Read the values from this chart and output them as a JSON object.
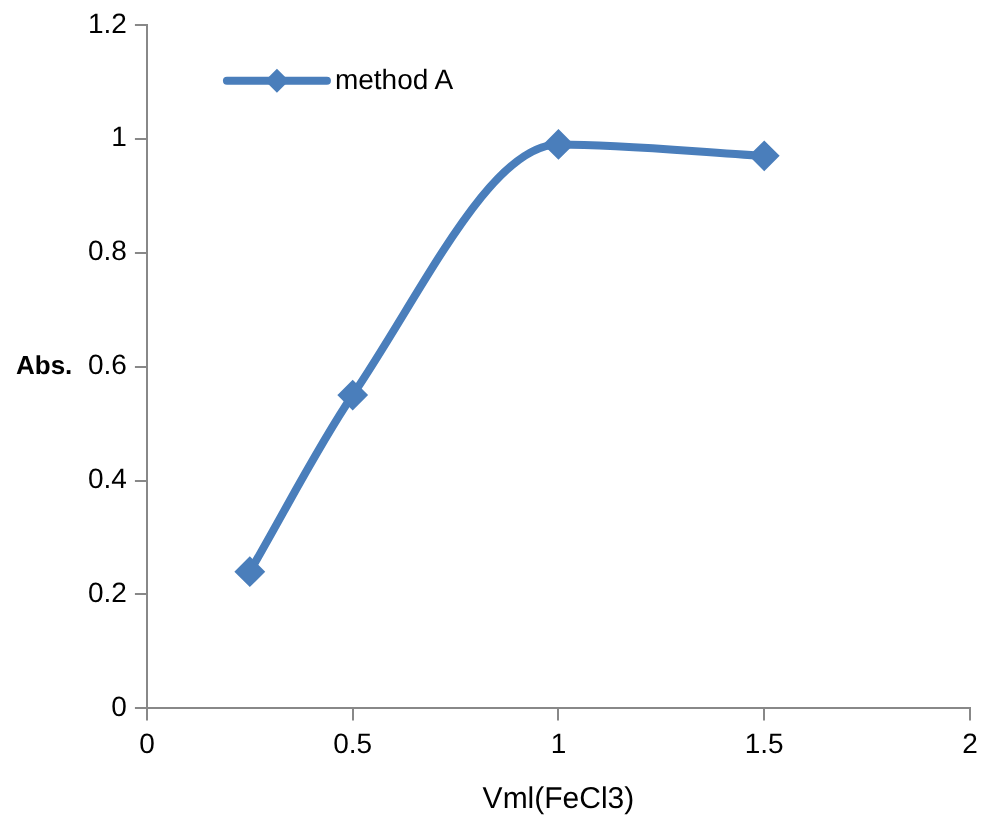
{
  "chart_data": {
    "type": "line",
    "xlabel": "Vml(FeCl3)",
    "ylabel": "Abs.",
    "x": [
      0.25,
      0.5,
      1,
      1.5
    ],
    "series": [
      {
        "name": "method A",
        "color": "#4a7ebb",
        "values": [
          0.24,
          0.55,
          0.99,
          0.97
        ]
      }
    ],
    "xlim": [
      0,
      2
    ],
    "xticks": [
      0,
      0.5,
      1,
      1.5,
      2
    ],
    "ylim": [
      0,
      1.2
    ],
    "yticks": [
      0,
      0.2,
      0.4,
      0.6,
      0.8,
      1,
      1.2
    ],
    "grid": false,
    "legend": "top left",
    "marker": "diamond",
    "line_style": "solid"
  }
}
